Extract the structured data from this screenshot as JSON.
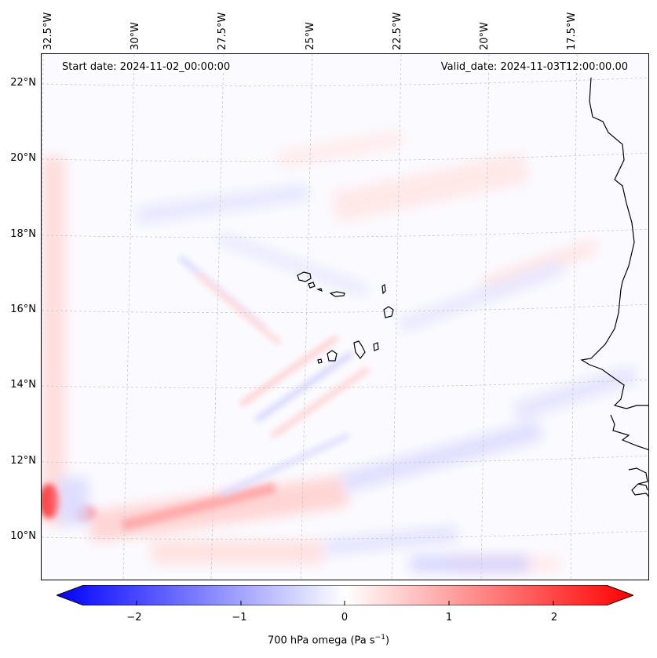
{
  "header": {
    "start_date": "Start date: 2024-11-02_00:00:00",
    "valid_date": "Valid_date: 2024-11-03T12:00:00.00"
  },
  "longitude_labels": [
    "32.5°W",
    "30°W",
    "27.5°W",
    "25°W",
    "22.5°W",
    "20°W",
    "17.5°W"
  ],
  "latitude_labels": [
    "22°N",
    "20°N",
    "18°N",
    "16°N",
    "14°N",
    "12°N",
    "10°N"
  ],
  "colorbar": {
    "ticks": [
      "−2",
      "−1",
      "0",
      "1",
      "2"
    ],
    "label_prefix": "700 hPa omega (Pa s",
    "label_exp": "−1",
    "label_suffix": ")",
    "range": [
      -2.75,
      2.75
    ],
    "min_color": "#0000ff",
    "mid_color": "#ffffff",
    "max_color": "#ff0000"
  },
  "map": {
    "coastline_color": "#000000",
    "gridline_color": "#c8c8c8",
    "field_background": "#fbfbff"
  }
}
